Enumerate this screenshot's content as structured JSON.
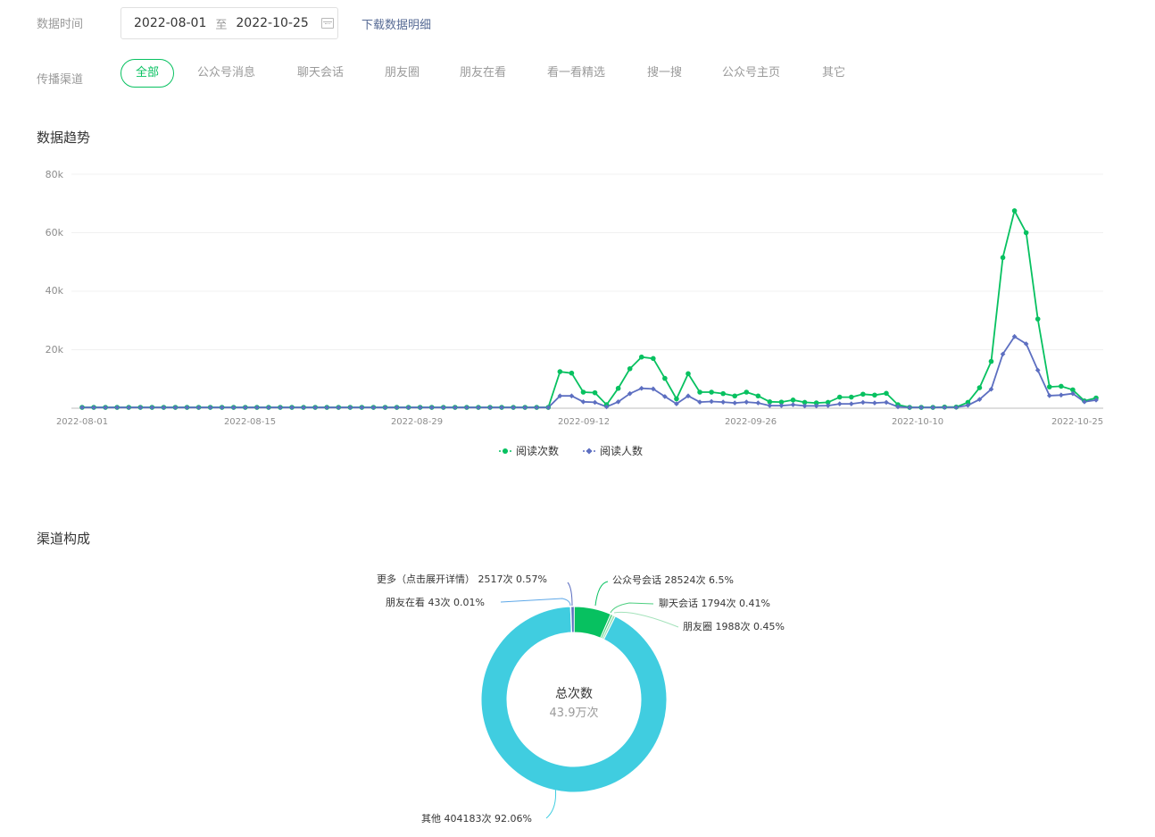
{
  "filters": {
    "date_label": "数据时间",
    "start_date": "2022-08-01",
    "range_sep": "至",
    "end_date": "2022-10-25",
    "download_label": "下载数据明细",
    "channel_label": "传播渠道",
    "channels": [
      "全部",
      "公众号消息",
      "聊天会话",
      "朋友圈",
      "朋友在看",
      "看一看精选",
      "搜一搜",
      "公众号主页",
      "其它"
    ],
    "active_channel": "全部"
  },
  "trend": {
    "title": "数据趋势",
    "y_ticks": [
      "80k",
      "60k",
      "40k",
      "20k"
    ],
    "x_ticks": [
      "2022-08-01",
      "2022-08-15",
      "2022-08-29",
      "2022-09-12",
      "2022-09-26",
      "2022-10-10",
      "2022-10-25"
    ],
    "legend": [
      "阅读次数",
      "阅读人数"
    ]
  },
  "composition": {
    "title": "渠道构成",
    "center_title": "总次数",
    "center_value": "43.9万次",
    "labels": {
      "more": "更多（点击展开详情） 2517次 0.57%",
      "friend_watching": "朋友在看 43次 0.01%",
      "official_chat": "公众号会话 28524次 6.5%",
      "chat": "聊天会话 1794次 0.41%",
      "moments": "朋友圈 1988次 0.45%",
      "other": "其他 404183次 92.06%"
    }
  },
  "chart_data": [
    {
      "type": "line",
      "title": "数据趋势",
      "x_start": "2022-08-01",
      "x_end": "2022-10-25",
      "ylim": [
        0,
        80000
      ],
      "y_tick_values": [
        0,
        20000,
        40000,
        60000,
        80000
      ],
      "legend_position": "bottom",
      "grid": true,
      "series": [
        {
          "name": "阅读次数",
          "color": "#07c160",
          "marker": "circle",
          "values": [
            300,
            300,
            300,
            300,
            300,
            300,
            300,
            300,
            300,
            300,
            300,
            300,
            300,
            300,
            300,
            300,
            300,
            300,
            300,
            300,
            300,
            300,
            300,
            300,
            300,
            300,
            300,
            300,
            300,
            300,
            300,
            300,
            300,
            300,
            300,
            300,
            300,
            300,
            300,
            300,
            300,
            12500,
            12000,
            5500,
            5300,
            1200,
            6800,
            13500,
            17500,
            17000,
            10200,
            3200,
            11800,
            5500,
            5500,
            5000,
            4200,
            5500,
            4200,
            2200,
            2100,
            2800,
            2000,
            1800,
            2000,
            3800,
            3800,
            4800,
            4500,
            5100,
            1200,
            300,
            300,
            300,
            400,
            400,
            2000,
            7000,
            16000,
            51500,
            67500,
            60000,
            30500,
            7300,
            7500,
            6300,
            2500,
            3500
          ]
        },
        {
          "name": "阅读人数",
          "color": "#5d6fc1",
          "marker": "diamond",
          "values": [
            250,
            250,
            250,
            250,
            250,
            250,
            250,
            250,
            250,
            250,
            250,
            250,
            250,
            250,
            250,
            250,
            250,
            250,
            250,
            250,
            250,
            250,
            250,
            250,
            250,
            250,
            250,
            250,
            250,
            250,
            250,
            250,
            250,
            250,
            250,
            250,
            250,
            250,
            250,
            250,
            250,
            4200,
            4200,
            2200,
            2000,
            500,
            2200,
            5000,
            6800,
            6600,
            4000,
            1500,
            4200,
            2100,
            2300,
            2100,
            1800,
            2100,
            1800,
            900,
            900,
            1200,
            800,
            800,
            900,
            1500,
            1500,
            2000,
            1800,
            2000,
            500,
            250,
            250,
            250,
            300,
            300,
            1000,
            3000,
            6500,
            18500,
            24500,
            22000,
            13000,
            4300,
            4500,
            5000,
            2200,
            2800
          ]
        }
      ]
    },
    {
      "type": "pie",
      "title": "渠道构成",
      "center_label": "总次数",
      "total": "43.9万次",
      "slices": [
        {
          "name": "公众号会话",
          "count": 28524,
          "percent": 6.5,
          "color": "#07c160"
        },
        {
          "name": "聊天会话",
          "count": 1794,
          "percent": 0.41,
          "color": "#4dcf80"
        },
        {
          "name": "朋友圈",
          "count": 1988,
          "percent": 0.45,
          "color": "#a3e2ba"
        },
        {
          "name": "其他",
          "count": 404183,
          "percent": 92.06,
          "color": "#40cde0"
        },
        {
          "name": "朋友在看",
          "count": 43,
          "percent": 0.01,
          "color": "#5ea8e8"
        },
        {
          "name": "更多（点击展开详情）",
          "count": 2517,
          "percent": 0.57,
          "color": "#5d6fc1"
        }
      ]
    }
  ]
}
